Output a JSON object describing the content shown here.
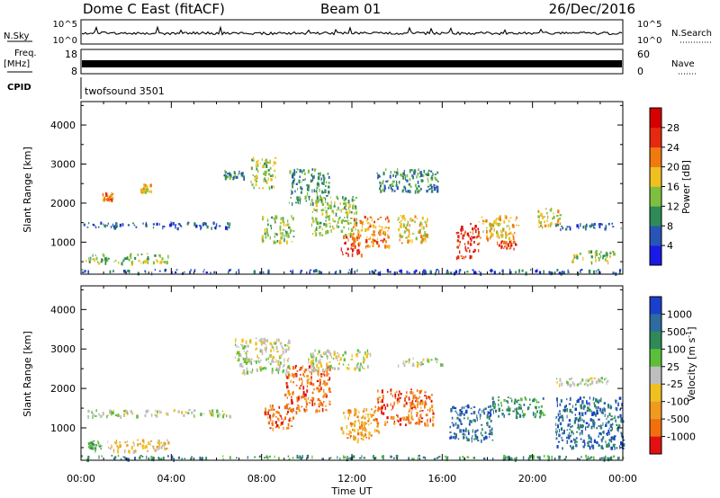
{
  "header": {
    "station": "Dome C East (fitACF)",
    "beam": "Beam 01",
    "date": "26/Dec/2016"
  },
  "status_panels": {
    "nsky_label": "N.Sky",
    "nsky_ticks": [
      "10^5",
      "10^0"
    ],
    "nsearch_label": "N.Search",
    "nsearch_ticks": [
      "10^5",
      "10^0"
    ],
    "freq_label": "Freq.",
    "freq_unit": "[MHz]",
    "freq_ticks": [
      "18",
      "8"
    ],
    "nave_label": "Nave",
    "nave_ticks": [
      "60",
      "0"
    ],
    "cpid_label": "CPID",
    "cpid_value": "twofsound 3501"
  },
  "chart_data": [
    {
      "type": "heatmap",
      "name": "power",
      "ylabel": "Slant Range [km]",
      "ylim": [
        180,
        4600
      ],
      "yticks": [
        1000,
        2000,
        3000,
        4000
      ],
      "xlim": [
        0,
        24
      ],
      "colorbar": {
        "label": "Power [dB]",
        "ticks": [
          "4",
          "8",
          "12",
          "16",
          "20",
          "24",
          "28"
        ],
        "colors": [
          "#1a1ae6",
          "#2854b8",
          "#2e8b57",
          "#7fbf3f",
          "#f0c020",
          "#f07a10",
          "#e52a10",
          "#d60000"
        ]
      },
      "regions": [
        {
          "t": [
            0.0,
            24.0
          ],
          "r": [
            230,
            320
          ],
          "level": 1
        },
        {
          "t": [
            0.2,
            3.9
          ],
          "r": [
            480,
            720
          ],
          "level": 3
        },
        {
          "t": [
            0.1,
            6.6
          ],
          "r": [
            1380,
            1530
          ],
          "level": 1
        },
        {
          "t": [
            0.9,
            1.4
          ],
          "r": [
            2100,
            2300
          ],
          "level": 5
        },
        {
          "t": [
            2.6,
            3.1
          ],
          "r": [
            2300,
            2500
          ],
          "level": 4
        },
        {
          "t": [
            6.3,
            7.2
          ],
          "r": [
            2650,
            2850
          ],
          "level": 2
        },
        {
          "t": [
            7.5,
            8.6
          ],
          "r": [
            2400,
            3200
          ],
          "level": 3
        },
        {
          "t": [
            8.0,
            9.4
          ],
          "r": [
            1000,
            1700
          ],
          "level": 3
        },
        {
          "t": [
            9.2,
            11.0
          ],
          "r": [
            2000,
            2900
          ],
          "level": 2
        },
        {
          "t": [
            10.2,
            12.2
          ],
          "r": [
            1200,
            2200
          ],
          "level": 3
        },
        {
          "t": [
            11.5,
            12.4
          ],
          "r": [
            700,
            1200
          ],
          "level": 6
        },
        {
          "t": [
            12.0,
            13.6
          ],
          "r": [
            900,
            1700
          ],
          "level": 5
        },
        {
          "t": [
            13.0,
            15.8
          ],
          "r": [
            2300,
            2900
          ],
          "level": 2
        },
        {
          "t": [
            14.0,
            15.4
          ],
          "r": [
            1000,
            1700
          ],
          "level": 4
        },
        {
          "t": [
            16.6,
            17.6
          ],
          "r": [
            600,
            1500
          ],
          "level": 6
        },
        {
          "t": [
            17.6,
            19.4
          ],
          "r": [
            1100,
            1700
          ],
          "level": 4
        },
        {
          "t": [
            18.4,
            19.3
          ],
          "r": [
            850,
            1050
          ],
          "level": 6
        },
        {
          "t": [
            20.2,
            21.2
          ],
          "r": [
            1400,
            1900
          ],
          "level": 4
        },
        {
          "t": [
            21.0,
            24.0
          ],
          "r": [
            1350,
            1500
          ],
          "level": 1
        },
        {
          "t": [
            21.6,
            23.6
          ],
          "r": [
            500,
            800
          ],
          "level": 3
        }
      ]
    },
    {
      "type": "heatmap",
      "name": "velocity",
      "ylabel": "Slant Range [km]",
      "ylim": [
        180,
        4600
      ],
      "yticks": [
        1000,
        2000,
        3000,
        4000
      ],
      "xlim": [
        0,
        24
      ],
      "xlabel": "Time UT",
      "xticks": [
        "00:00",
        "04:00",
        "08:00",
        "12:00",
        "16:00",
        "20:00",
        "00:00"
      ],
      "colorbar": {
        "label": "Velocity [m s",
        "label_sup": "-1",
        "label_end": "]",
        "ticks": [
          "1000",
          "500",
          "100",
          "25",
          "-25",
          "-100",
          "-500",
          "-1000"
        ],
        "colors": [
          "#1a3fcc",
          "#2e6b9e",
          "#2e8b57",
          "#5cbf3a",
          "#bebebe",
          "#f0c020",
          "#f09a20",
          "#f07010",
          "#e21010"
        ]
      },
      "regions": [
        {
          "t": [
            0.0,
            24.0
          ],
          "r": [
            230,
            320
          ],
          "level": 2
        },
        {
          "t": [
            0.3,
            0.9
          ],
          "r": [
            450,
            700
          ],
          "level": 3
        },
        {
          "t": [
            0.9,
            3.9
          ],
          "r": [
            430,
            720
          ],
          "level": 5
        },
        {
          "t": [
            0.1,
            6.6
          ],
          "r": [
            1320,
            1480
          ],
          "level": 4
        },
        {
          "t": [
            6.8,
            9.2
          ],
          "r": [
            2400,
            3300
          ],
          "level": 4
        },
        {
          "t": [
            8.1,
            9.4
          ],
          "r": [
            1000,
            1600
          ],
          "level": 7
        },
        {
          "t": [
            9.0,
            11.0
          ],
          "r": [
            1400,
            2600
          ],
          "level": 7
        },
        {
          "t": [
            10.0,
            12.8
          ],
          "r": [
            2500,
            3000
          ],
          "level": 4
        },
        {
          "t": [
            11.5,
            13.2
          ],
          "r": [
            700,
            1500
          ],
          "level": 6
        },
        {
          "t": [
            13.0,
            15.6
          ],
          "r": [
            1100,
            2000
          ],
          "level": 7
        },
        {
          "t": [
            14.0,
            16.0
          ],
          "r": [
            2600,
            2800
          ],
          "level": 4
        },
        {
          "t": [
            16.3,
            18.2
          ],
          "r": [
            700,
            1600
          ],
          "level": 1
        },
        {
          "t": [
            18.2,
            20.5
          ],
          "r": [
            1300,
            1800
          ],
          "level": 2
        },
        {
          "t": [
            21.0,
            24.0
          ],
          "r": [
            500,
            1800
          ],
          "level": 1
        },
        {
          "t": [
            21.0,
            23.6
          ],
          "r": [
            2100,
            2300
          ],
          "level": 4
        }
      ]
    }
  ]
}
